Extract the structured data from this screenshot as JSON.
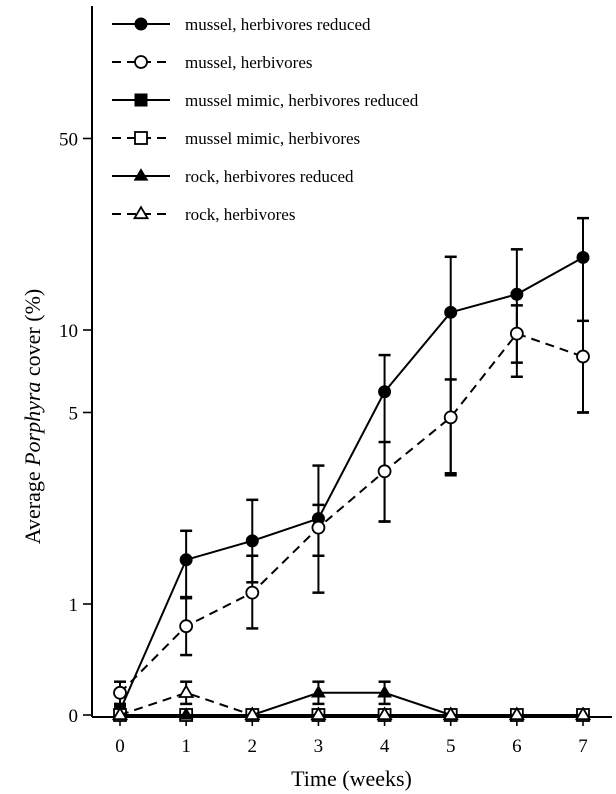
{
  "chart_data": {
    "type": "line",
    "title": "",
    "xlabel": "Time (weeks)",
    "ylabel_prefix": "Average ",
    "ylabel_italic": "Porphyra",
    "ylabel_suffix": " cover (%)",
    "y_scale": "log (0 marked at the baseline)",
    "x": [
      0,
      1,
      2,
      3,
      4,
      5,
      6,
      7
    ],
    "x_tick_labels": [
      "0",
      "1",
      "2",
      "3",
      "4",
      "5",
      "6",
      "7"
    ],
    "xlim": [
      -0.25,
      7.4
    ],
    "ylim": [
      0,
      80
    ],
    "y_ticks": [
      0,
      1,
      5,
      10,
      50
    ],
    "y_tick_labels": [
      "0",
      "1",
      "5",
      "10",
      "50"
    ],
    "grid": false,
    "legend_position": "top-left",
    "series": [
      {
        "name": "mussel, herbivores reduced",
        "line_style": "solid",
        "marker": "filled-circle",
        "values": [
          0.04,
          1.45,
          1.7,
          2.05,
          5.95,
          11.6,
          13.5,
          18.4
        ],
        "err_low": [
          0.0,
          1.05,
          1.2,
          1.1,
          2.0,
          3.0,
          7.6,
          5.0
        ],
        "err_high": [
          0.08,
          1.85,
          2.4,
          3.2,
          8.1,
          18.5,
          19.7,
          25.6
        ]
      },
      {
        "name": "mussel, herbivores",
        "line_style": "dashed",
        "marker": "open-circle",
        "values": [
          0.2,
          0.8,
          1.1,
          1.9,
          3.05,
          4.8,
          9.7,
          8.0
        ],
        "err_low": [
          0.1,
          0.54,
          0.78,
          1.5,
          2.0,
          2.95,
          6.75,
          5.0
        ],
        "err_high": [
          0.3,
          1.06,
          1.5,
          2.3,
          3.9,
          6.6,
          12.3,
          10.8
        ]
      },
      {
        "name": "mussel mimic, herbivores reduced",
        "line_style": "solid",
        "marker": "filled-square",
        "values": [
          0,
          0,
          0,
          0,
          0,
          0,
          0,
          0
        ]
      },
      {
        "name": "mussel mimic, herbivores",
        "line_style": "dashed",
        "marker": "open-square",
        "values": [
          0,
          0,
          0,
          0,
          0,
          0,
          0,
          0
        ]
      },
      {
        "name": "rock, herbivores reduced",
        "line_style": "solid",
        "marker": "filled-triangle",
        "values": [
          0,
          0,
          0,
          0.2,
          0.2,
          0,
          0,
          0
        ],
        "err_low": [
          0,
          0,
          0,
          0.1,
          0.1,
          0,
          0,
          0
        ],
        "err_high": [
          0,
          0,
          0,
          0.3,
          0.3,
          0,
          0,
          0
        ]
      },
      {
        "name": "rock, herbivores",
        "line_style": "dashed",
        "marker": "open-triangle",
        "values": [
          0,
          0.2,
          0,
          0,
          0,
          0,
          0,
          0
        ],
        "err_low": [
          0,
          0.1,
          0,
          0,
          0,
          0,
          0,
          0
        ],
        "err_high": [
          0,
          0.3,
          0,
          0,
          0,
          0,
          0,
          0
        ]
      }
    ]
  }
}
